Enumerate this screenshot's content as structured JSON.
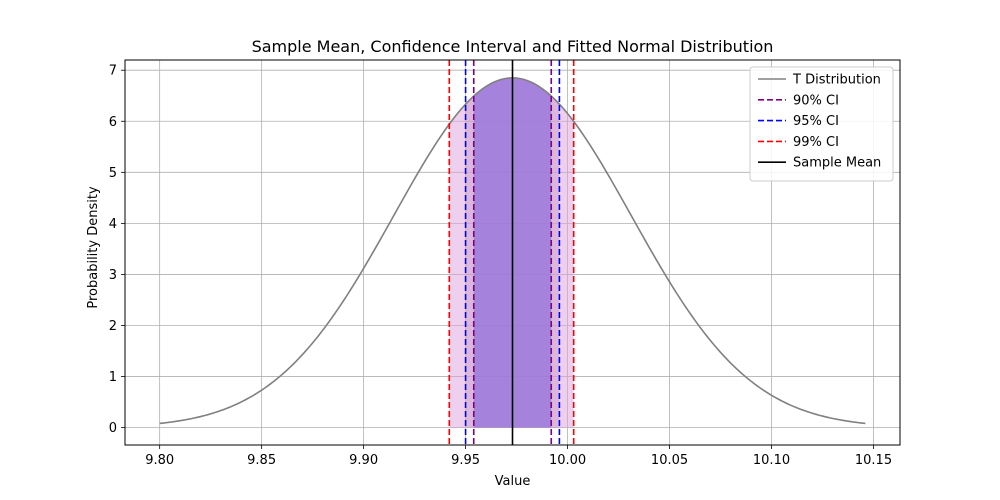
{
  "chart_data": {
    "type": "line",
    "title": "Sample Mean, Confidence Interval and Fitted Normal Distribution",
    "xlabel": "Value",
    "ylabel": "Probability Density",
    "xlim": [
      9.783,
      10.163
    ],
    "ylim": [
      -0.34,
      7.2
    ],
    "xticks": [
      9.8,
      9.85,
      9.9,
      9.95,
      10.0,
      10.05,
      10.1,
      10.15
    ],
    "xtick_labels": [
      "9.80",
      "9.85",
      "9.90",
      "9.95",
      "10.00",
      "10.05",
      "10.10",
      "10.15"
    ],
    "yticks": [
      0,
      1,
      2,
      3,
      4,
      5,
      6,
      7
    ],
    "ytick_labels": [
      "0",
      "1",
      "2",
      "3",
      "4",
      "5",
      "6",
      "7"
    ],
    "grid": true,
    "legend_position": "top-right",
    "distribution": {
      "name": "T Distribution",
      "color": "#808080",
      "x_range": [
        9.8,
        10.146
      ],
      "peak_x": 9.973,
      "peak_y": 6.85,
      "std": 0.0582
    },
    "sample_mean": {
      "name": "Sample Mean",
      "x": 9.973,
      "color": "#000000"
    },
    "confidence_intervals": [
      {
        "name": "90% CI",
        "lower": 9.954,
        "upper": 9.992,
        "color": "#800080",
        "fill": "#9370DB",
        "fill_opacity": 0.75
      },
      {
        "name": "95% CI",
        "lower": 9.95,
        "upper": 9.996,
        "color": "#0000FF",
        "fill": "#C8A0C8",
        "fill_opacity": 0.5
      },
      {
        "name": "99% CI",
        "lower": 9.942,
        "upper": 10.003,
        "color": "#FF0000",
        "fill": "#DDA0DD",
        "fill_opacity": 0.5
      }
    ],
    "legend": [
      {
        "label": "T Distribution",
        "color": "#808080",
        "style": "solid"
      },
      {
        "label": "90% CI",
        "color": "#800080",
        "style": "dashed"
      },
      {
        "label": "95% CI",
        "color": "#0000FF",
        "style": "dashed"
      },
      {
        "label": "99% CI",
        "color": "#FF0000",
        "style": "dashed"
      },
      {
        "label": "Sample Mean",
        "color": "#000000",
        "style": "solid"
      }
    ]
  }
}
